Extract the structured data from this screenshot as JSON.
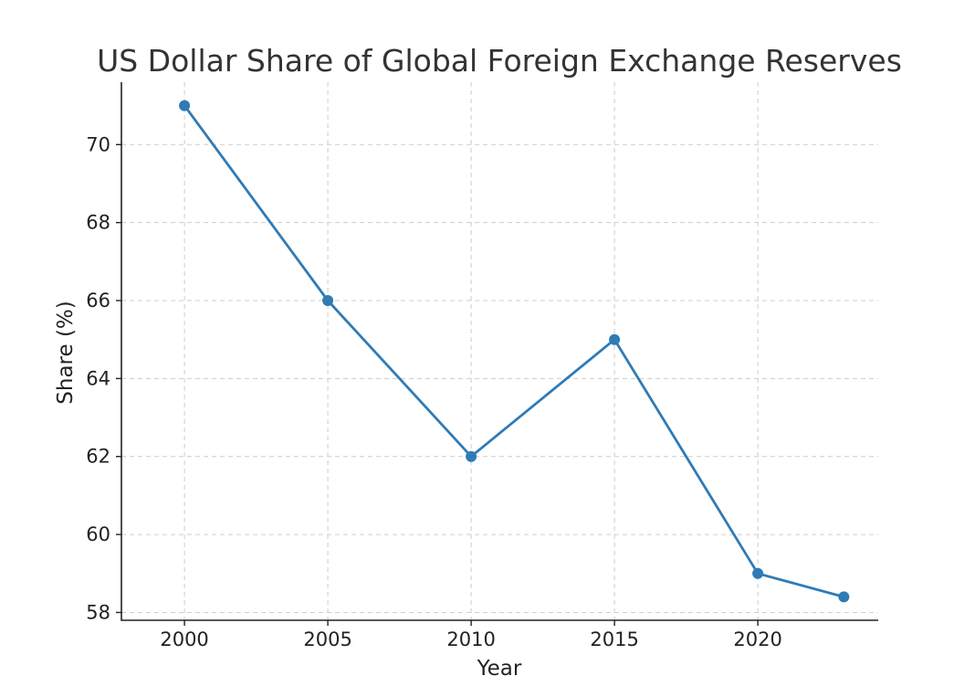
{
  "chart_data": {
    "type": "line",
    "title": "US Dollar Share of Global Foreign Exchange Reserves",
    "xlabel": "Year",
    "ylabel": "Share (%)",
    "xlim": [
      1997.8,
      2024.2
    ],
    "ylim": [
      57.8,
      71.6
    ],
    "x_ticks": [
      2000,
      2005,
      2010,
      2015,
      2020
    ],
    "y_ticks": [
      58,
      60,
      62,
      64,
      66,
      68,
      70
    ],
    "grid": true,
    "series": [
      {
        "x": [
          2000,
          2005,
          2010,
          2015,
          2020,
          2023
        ],
        "values": [
          71.0,
          66.0,
          62.0,
          65.0,
          59.0,
          58.4
        ],
        "color": "#2f7bb6"
      }
    ]
  }
}
